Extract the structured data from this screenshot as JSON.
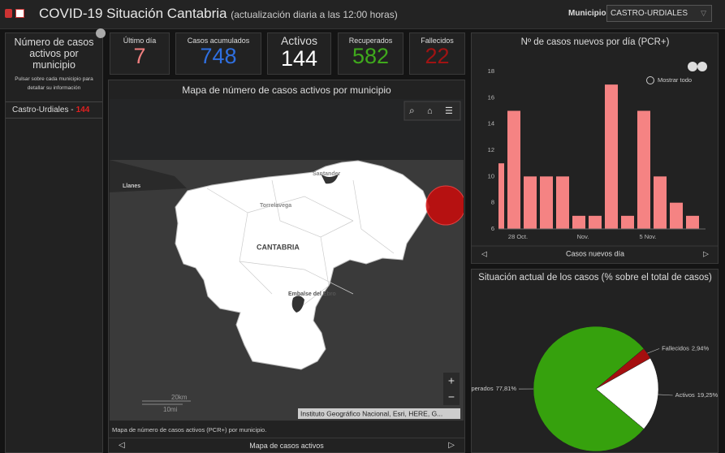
{
  "header": {
    "title": "COVID-19 Situación Cantabria",
    "subtitle": "(actualización diaria a las 12:00 horas)",
    "municipio_label": "Municipio",
    "municipio_value": "CASTRO-URDIALES"
  },
  "left_panel": {
    "title": "Número de casos activos por municipio",
    "hint": "Pulsar sobre cada municipio para detallar su información",
    "items": [
      {
        "name": "Castro-Urdiales -",
        "value": 144
      }
    ]
  },
  "stats": [
    {
      "label": "Último día",
      "value": 7,
      "color": "#f07f7f"
    },
    {
      "label": "Casos acumulados",
      "value": 748,
      "color": "#2f6fe0"
    },
    {
      "label": "Activos",
      "value": 144,
      "color": "#ffffff"
    },
    {
      "label": "Recuperados",
      "value": 582,
      "color": "#3fa91c"
    },
    {
      "label": "Fallecidos",
      "value": 22,
      "color": "#a01313"
    }
  ],
  "map": {
    "title": "Mapa de número de casos activos por municipio",
    "place_labels": [
      "Llanes",
      "Torrelavega",
      "Santander",
      "CANTABRIA",
      "Embalse del Ebro"
    ],
    "scale_km": "20km",
    "scale_mi": "10mi",
    "attribution": "Instituto Geográfico Nacional, Esri, HERE, G...",
    "caption": "Mapa de número de casos activos (PCR+) por municipio.",
    "footer": "Mapa de casos activos",
    "zoom_in": "+",
    "zoom_out": "−"
  },
  "chart_data": [
    {
      "type": "bar",
      "title": "Nº de casos nuevos por día (PCR+)",
      "x_label": "Casos nuevos día",
      "reset_label": "Mostrar todo",
      "categories": [
        null,
        "28 Oct.",
        null,
        null,
        null,
        "Nov.",
        null,
        null,
        null,
        "5 Nov.",
        null,
        null,
        null
      ],
      "values": [
        11,
        15,
        10,
        10,
        10,
        7,
        7,
        17,
        7,
        15,
        10,
        8,
        7
      ],
      "color": "#f58383",
      "ylim": [
        6,
        18
      ],
      "yticks": [
        6,
        8,
        10,
        12,
        14,
        16,
        18
      ],
      "grid": false
    },
    {
      "type": "pie",
      "title": "Situación actual de los casos (% sobre el total de casos)",
      "categories": [
        "Fallecidos",
        "Activos",
        "Recuperados"
      ],
      "values": [
        2.94,
        19.25,
        77.81
      ],
      "value_labels": [
        "2,94%",
        "19,25%",
        "77,81%"
      ],
      "colors": [
        "#a50f0f",
        "#ffffff",
        "#36a10d"
      ]
    }
  ]
}
